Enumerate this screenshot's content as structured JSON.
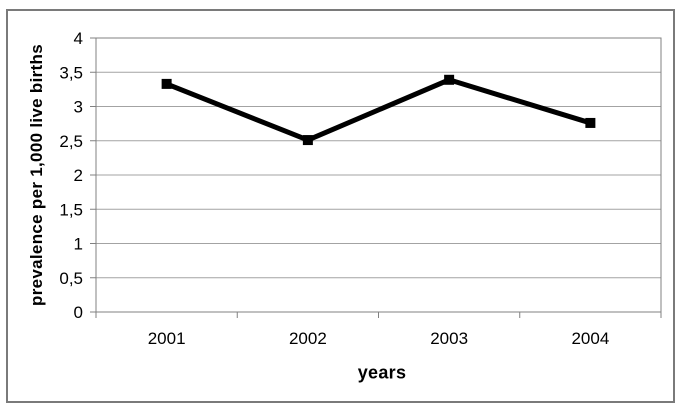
{
  "chart_data": {
    "type": "line",
    "title": "",
    "categories": [
      "2001",
      "2002",
      "2003",
      "2004"
    ],
    "series": [
      {
        "name": "prevalence",
        "values": [
          3.33,
          2.51,
          3.39,
          2.76
        ]
      }
    ],
    "xlabel": "years",
    "ylabel": "prevalence per 1,000 live births",
    "ylim": [
      0,
      4
    ],
    "y_tick_step": 0.5,
    "y_tick_labels": [
      "0",
      "0,5",
      "1",
      "1,5",
      "2",
      "2,5",
      "3",
      "3,5",
      "4"
    ],
    "decimal_separator": ",",
    "grid": "horizontal",
    "legend_position": "none",
    "marker": "square",
    "colors": {
      "series_line": "#000000",
      "marker_fill": "#000000",
      "gridline": "#a3a3a3",
      "axis_line": "#808080",
      "frame_border": "#7a7a7a",
      "background": "#ffffff",
      "text": "#000000"
    }
  }
}
